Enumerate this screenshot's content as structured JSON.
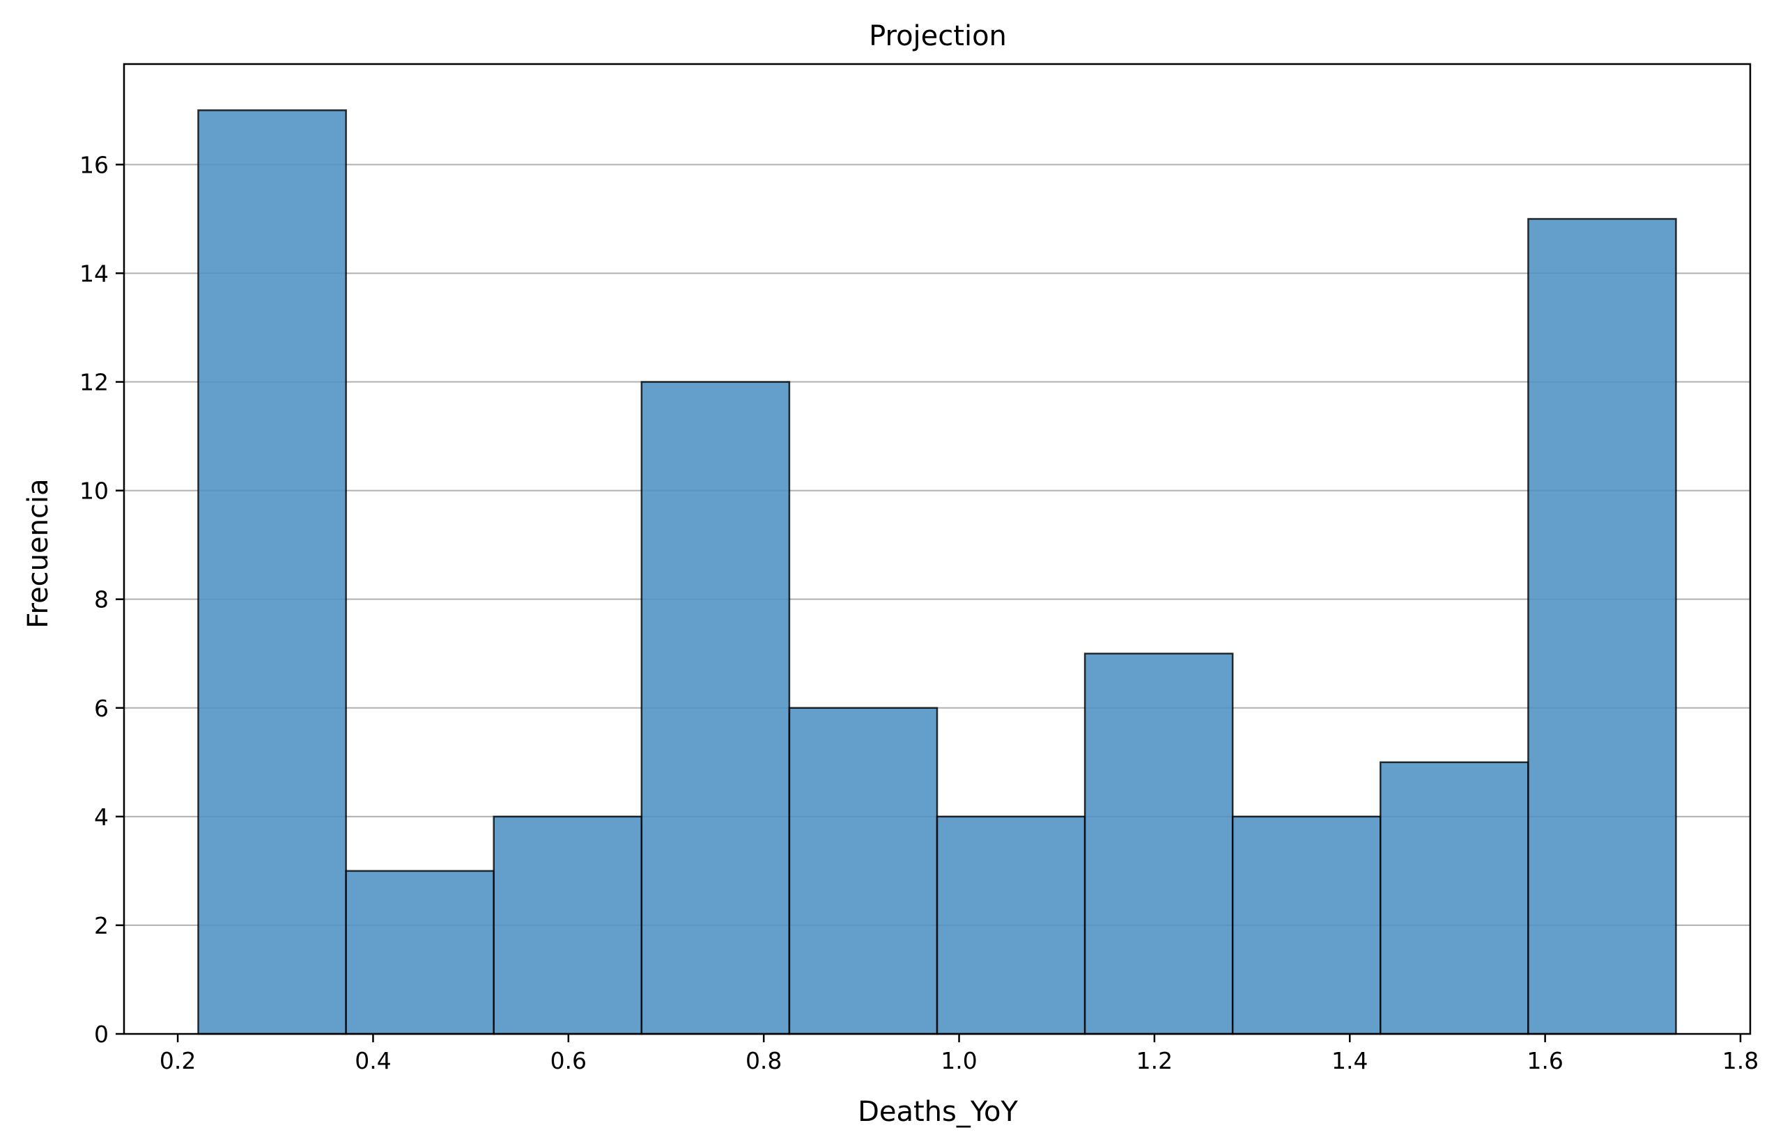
{
  "chart_data": {
    "type": "bar",
    "subtype": "histogram",
    "title": "Projection",
    "xlabel": "Deaths_YoY",
    "ylabel": "Frecuencia",
    "bin_edges": [
      0.221,
      0.3723,
      0.5236,
      0.6749,
      0.8262,
      0.9775,
      1.1288,
      1.2801,
      1.4314,
      1.5827,
      1.734
    ],
    "values": [
      17,
      3,
      4,
      12,
      6,
      4,
      7,
      4,
      5,
      15
    ],
    "xlim": [
      0.145,
      1.81
    ],
    "ylim": [
      0,
      17.85
    ],
    "x_ticks": [
      0.2,
      0.4,
      0.6,
      0.8,
      1.0,
      1.2,
      1.4,
      1.6,
      1.8
    ],
    "x_tick_labels": [
      "0.2",
      "0.4",
      "0.6",
      "0.8",
      "1.0",
      "1.2",
      "1.4",
      "1.6",
      "1.8"
    ],
    "y_ticks": [
      0,
      2,
      4,
      6,
      8,
      10,
      12,
      14,
      16
    ],
    "y_tick_labels": [
      "0",
      "2",
      "4",
      "6",
      "8",
      "10",
      "12",
      "14",
      "16"
    ],
    "grid": "y-axis only",
    "bar_color": "#4f91c4",
    "bar_edge_color": "#000000",
    "grid_color": "#b0b0b0"
  }
}
